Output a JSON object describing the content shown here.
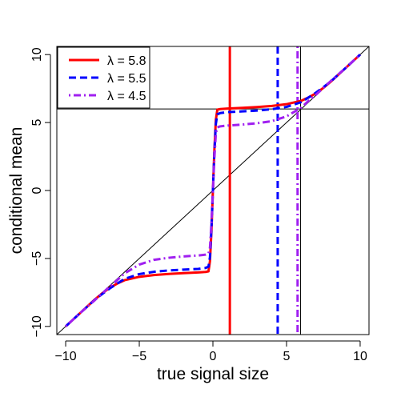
{
  "colors": {
    "red": "#ff0000",
    "blue": "#0000ff",
    "purple": "#a020f0",
    "black": "#000000"
  },
  "chart_data": {
    "type": "line",
    "title": "",
    "xlabel": "true signal size",
    "ylabel": "conditional mean",
    "xlim": [
      -10.6,
      10.6
    ],
    "ylim": [
      -10.6,
      10.6
    ],
    "xticks": [
      -10,
      -5,
      0,
      5,
      10
    ],
    "yticks": [
      -10,
      -5,
      0,
      5,
      10
    ],
    "xtick_labels": [
      "−10",
      "−5",
      "0",
      "5",
      "10"
    ],
    "ytick_labels": [
      "−10",
      "−5",
      "0",
      "5",
      "10"
    ],
    "grid": false,
    "legend_position": "top-left",
    "series": [
      {
        "name": "λ = 5.8",
        "color": "#ff0000",
        "dash": "solid",
        "x": [
          -10,
          -9,
          -8,
          -7.5,
          -7,
          -6.5,
          -6,
          -5,
          -4,
          -3,
          -2,
          -1,
          -0.5,
          -0.3,
          -0.2,
          -0.1,
          0,
          0.1,
          0.2,
          0.3,
          0.5,
          1,
          2,
          3,
          4,
          5,
          6,
          6.5,
          7,
          7.5,
          8,
          9,
          10
        ],
        "y": [
          -10,
          -9,
          -8,
          -7.55,
          -7.15,
          -6.85,
          -6.6,
          -6.35,
          -6.22,
          -6.14,
          -6.08,
          -6.03,
          -5.99,
          -5.95,
          -5.2,
          -3.0,
          0,
          3.0,
          5.2,
          5.95,
          5.99,
          6.03,
          6.08,
          6.14,
          6.22,
          6.35,
          6.6,
          6.85,
          7.15,
          7.55,
          8,
          9,
          10
        ]
      },
      {
        "name": "λ = 5.5",
        "color": "#0000ff",
        "dash": "dashed",
        "x": [
          -10,
          -9,
          -8,
          -7.5,
          -7,
          -6.5,
          -6,
          -5,
          -4,
          -3,
          -2,
          -1,
          -0.5,
          -0.3,
          -0.2,
          -0.1,
          0,
          0.1,
          0.2,
          0.3,
          0.5,
          1,
          2,
          3,
          4,
          5,
          6,
          6.5,
          7,
          7.5,
          8,
          9,
          10
        ],
        "y": [
          -10,
          -9,
          -8.02,
          -7.6,
          -7.2,
          -6.85,
          -6.5,
          -6.15,
          -5.98,
          -5.88,
          -5.82,
          -5.77,
          -5.7,
          -5.6,
          -4.9,
          -2.8,
          0,
          2.8,
          4.9,
          5.6,
          5.7,
          5.77,
          5.82,
          5.88,
          5.98,
          6.15,
          6.5,
          6.85,
          7.2,
          7.6,
          8.02,
          9,
          10
        ]
      },
      {
        "name": "λ = 4.5",
        "color": "#a020f0",
        "dash": "dotdash",
        "x": [
          -10,
          -9,
          -8,
          -7.5,
          -7,
          -6.5,
          -6,
          -5,
          -4,
          -3,
          -2,
          -1,
          -0.5,
          -0.3,
          -0.2,
          -0.1,
          0,
          0.1,
          0.2,
          0.3,
          0.5,
          1,
          2,
          3,
          4,
          5,
          6,
          6.5,
          7,
          7.5,
          8,
          9,
          10
        ],
        "y": [
          -10,
          -9,
          -8.05,
          -7.55,
          -7.05,
          -6.6,
          -6.1,
          -5.45,
          -5.1,
          -4.95,
          -4.85,
          -4.78,
          -4.72,
          -4.65,
          -4.2,
          -2.4,
          0,
          2.4,
          4.2,
          4.65,
          4.72,
          4.78,
          4.85,
          4.95,
          5.1,
          5.45,
          6.1,
          6.6,
          7.05,
          7.55,
          8.05,
          9,
          10
        ]
      }
    ],
    "reference_lines": {
      "identity_line": true,
      "horizontal_at_y": 6,
      "vertical_lines": [
        {
          "x": 1.15,
          "color": "#ff0000",
          "dash": "solid"
        },
        {
          "x": 4.4,
          "color": "#0000ff",
          "dash": "dashed"
        },
        {
          "x": 5.75,
          "color": "#a020f0",
          "dash": "dotdash"
        },
        {
          "x": 5.95,
          "color": "#000000",
          "dash": "solid"
        }
      ]
    }
  }
}
